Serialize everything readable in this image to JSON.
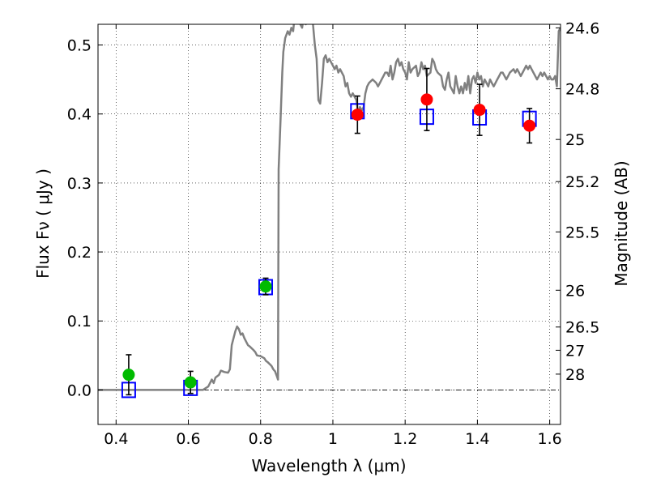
{
  "chart_data": {
    "type": "scatter",
    "xlabel": "Wavelength  λ (μm)",
    "ylabel": "Flux  Fν ( μJy )",
    "ylabel_right": "Magnitude (AB)",
    "xlim": [
      0.35,
      1.63
    ],
    "ylim": [
      -0.05,
      0.53
    ],
    "grid": true,
    "x_ticks": [
      0.4,
      0.6,
      0.8,
      1.0,
      1.2,
      1.4,
      1.6
    ],
    "x_tick_labels": [
      "0.4",
      "0.6",
      "0.8",
      "1",
      "1.2",
      "1.4",
      "1.6"
    ],
    "y_ticks": [
      0.0,
      0.1,
      0.2,
      0.3,
      0.4,
      0.5
    ],
    "y_tick_labels": [
      "0.0",
      "0.1",
      "0.2",
      "0.3",
      "0.4",
      "0.5"
    ],
    "mag_ticks": [
      {
        "value": 24.6,
        "label": "24.6"
      },
      {
        "value": 24.8,
        "label": "24.8"
      },
      {
        "value": 25.0,
        "label": "25"
      },
      {
        "value": 25.2,
        "label": "25.2"
      },
      {
        "value": 25.5,
        "label": "25.5"
      },
      {
        "value": 26.0,
        "label": "26"
      },
      {
        "value": 26.5,
        "label": "26.5"
      },
      {
        "value": 27.0,
        "label": "27"
      },
      {
        "value": 28.0,
        "label": "28"
      }
    ],
    "series": [
      {
        "name": "model spectrum",
        "kind": "line",
        "color": "#808080",
        "points": [
          [
            0.35,
            0.0
          ],
          [
            0.64,
            0.0
          ],
          [
            0.655,
            0.005
          ],
          [
            0.665,
            0.015
          ],
          [
            0.67,
            0.01
          ],
          [
            0.675,
            0.018
          ],
          [
            0.685,
            0.022
          ],
          [
            0.69,
            0.028
          ],
          [
            0.7,
            0.026
          ],
          [
            0.71,
            0.025
          ],
          [
            0.715,
            0.03
          ],
          [
            0.72,
            0.065
          ],
          [
            0.73,
            0.085
          ],
          [
            0.735,
            0.092
          ],
          [
            0.74,
            0.088
          ],
          [
            0.745,
            0.08
          ],
          [
            0.75,
            0.082
          ],
          [
            0.755,
            0.075
          ],
          [
            0.76,
            0.07
          ],
          [
            0.765,
            0.065
          ],
          [
            0.77,
            0.063
          ],
          [
            0.78,
            0.058
          ],
          [
            0.785,
            0.055
          ],
          [
            0.79,
            0.05
          ],
          [
            0.8,
            0.049
          ],
          [
            0.81,
            0.046
          ],
          [
            0.815,
            0.042
          ],
          [
            0.82,
            0.04
          ],
          [
            0.83,
            0.035
          ],
          [
            0.835,
            0.03
          ],
          [
            0.84,
            0.027
          ],
          [
            0.845,
            0.02
          ],
          [
            0.848,
            0.015
          ],
          [
            0.85,
            0.32
          ],
          [
            0.855,
            0.39
          ],
          [
            0.86,
            0.46
          ],
          [
            0.863,
            0.49
          ],
          [
            0.868,
            0.51
          ],
          [
            0.875,
            0.52
          ],
          [
            0.88,
            0.515
          ],
          [
            0.885,
            0.525
          ],
          [
            0.89,
            0.52
          ],
          [
            0.895,
            0.545
          ],
          [
            0.9,
            0.55
          ],
          [
            0.905,
            0.545
          ],
          [
            0.91,
            0.53
          ],
          [
            0.915,
            0.525
          ],
          [
            0.92,
            0.545
          ],
          [
            0.925,
            0.53
          ],
          [
            0.93,
            0.54
          ],
          [
            0.94,
            0.535
          ],
          [
            0.945,
            0.53
          ],
          [
            0.95,
            0.5
          ],
          [
            0.955,
            0.48
          ],
          [
            0.96,
            0.42
          ],
          [
            0.965,
            0.415
          ],
          [
            0.97,
            0.445
          ],
          [
            0.975,
            0.48
          ],
          [
            0.98,
            0.485
          ],
          [
            0.985,
            0.475
          ],
          [
            0.99,
            0.48
          ],
          [
            1.0,
            0.47
          ],
          [
            1.005,
            0.465
          ],
          [
            1.01,
            0.47
          ],
          [
            1.015,
            0.46
          ],
          [
            1.02,
            0.465
          ],
          [
            1.03,
            0.455
          ],
          [
            1.035,
            0.44
          ],
          [
            1.04,
            0.445
          ],
          [
            1.045,
            0.43
          ],
          [
            1.05,
            0.425
          ],
          [
            1.055,
            0.43
          ],
          [
            1.065,
            0.42
          ],
          [
            1.07,
            0.4
          ],
          [
            1.075,
            0.41
          ],
          [
            1.08,
            0.405
          ],
          [
            1.085,
            0.41
          ],
          [
            1.09,
            0.43
          ],
          [
            1.095,
            0.44
          ],
          [
            1.1,
            0.445
          ],
          [
            1.11,
            0.45
          ],
          [
            1.12,
            0.445
          ],
          [
            1.125,
            0.44
          ],
          [
            1.13,
            0.445
          ],
          [
            1.135,
            0.45
          ],
          [
            1.14,
            0.455
          ],
          [
            1.145,
            0.46
          ],
          [
            1.15,
            0.46
          ],
          [
            1.155,
            0.455
          ],
          [
            1.16,
            0.47
          ],
          [
            1.165,
            0.45
          ],
          [
            1.17,
            0.46
          ],
          [
            1.175,
            0.475
          ],
          [
            1.18,
            0.48
          ],
          [
            1.185,
            0.47
          ],
          [
            1.19,
            0.475
          ],
          [
            1.195,
            0.465
          ],
          [
            1.2,
            0.46
          ],
          [
            1.205,
            0.45
          ],
          [
            1.21,
            0.475
          ],
          [
            1.215,
            0.46
          ],
          [
            1.22,
            0.465
          ],
          [
            1.23,
            0.47
          ],
          [
            1.235,
            0.455
          ],
          [
            1.24,
            0.46
          ],
          [
            1.245,
            0.475
          ],
          [
            1.25,
            0.465
          ],
          [
            1.255,
            0.47
          ],
          [
            1.26,
            0.455
          ],
          [
            1.27,
            0.46
          ],
          [
            1.275,
            0.48
          ],
          [
            1.28,
            0.475
          ],
          [
            1.285,
            0.465
          ],
          [
            1.29,
            0.46
          ],
          [
            1.3,
            0.455
          ],
          [
            1.305,
            0.44
          ],
          [
            1.31,
            0.435
          ],
          [
            1.315,
            0.45
          ],
          [
            1.32,
            0.46
          ],
          [
            1.325,
            0.44
          ],
          [
            1.33,
            0.435
          ],
          [
            1.335,
            0.43
          ],
          [
            1.34,
            0.455
          ],
          [
            1.345,
            0.44
          ],
          [
            1.35,
            0.43
          ],
          [
            1.355,
            0.44
          ],
          [
            1.36,
            0.43
          ],
          [
            1.365,
            0.445
          ],
          [
            1.37,
            0.435
          ],
          [
            1.375,
            0.455
          ],
          [
            1.38,
            0.43
          ],
          [
            1.385,
            0.45
          ],
          [
            1.39,
            0.455
          ],
          [
            1.395,
            0.445
          ],
          [
            1.4,
            0.46
          ],
          [
            1.405,
            0.45
          ],
          [
            1.41,
            0.455
          ],
          [
            1.415,
            0.44
          ],
          [
            1.42,
            0.45
          ],
          [
            1.425,
            0.445
          ],
          [
            1.43,
            0.44
          ],
          [
            1.435,
            0.45
          ],
          [
            1.44,
            0.445
          ],
          [
            1.445,
            0.44
          ],
          [
            1.45,
            0.445
          ],
          [
            1.455,
            0.45
          ],
          [
            1.46,
            0.455
          ],
          [
            1.465,
            0.46
          ],
          [
            1.47,
            0.46
          ],
          [
            1.475,
            0.455
          ],
          [
            1.48,
            0.45
          ],
          [
            1.485,
            0.455
          ],
          [
            1.49,
            0.46
          ],
          [
            1.5,
            0.465
          ],
          [
            1.505,
            0.46
          ],
          [
            1.51,
            0.465
          ],
          [
            1.515,
            0.46
          ],
          [
            1.52,
            0.455
          ],
          [
            1.525,
            0.46
          ],
          [
            1.53,
            0.465
          ],
          [
            1.535,
            0.47
          ],
          [
            1.54,
            0.465
          ],
          [
            1.545,
            0.47
          ],
          [
            1.55,
            0.465
          ],
          [
            1.555,
            0.46
          ],
          [
            1.56,
            0.455
          ],
          [
            1.565,
            0.45
          ],
          [
            1.57,
            0.455
          ],
          [
            1.575,
            0.46
          ],
          [
            1.58,
            0.455
          ],
          [
            1.585,
            0.46
          ],
          [
            1.59,
            0.455
          ],
          [
            1.595,
            0.45
          ],
          [
            1.6,
            0.455
          ],
          [
            1.605,
            0.45
          ],
          [
            1.61,
            0.45
          ],
          [
            1.615,
            0.455
          ],
          [
            1.62,
            0.44
          ],
          [
            1.625,
            0.52
          ],
          [
            1.63,
            0.525
          ]
        ]
      },
      {
        "name": "model photometry",
        "kind": "open-square",
        "color": "#0000ff",
        "x": [
          0.435,
          0.606,
          0.814,
          1.068,
          1.26,
          1.406,
          1.544
        ],
        "y": [
          0.0,
          0.003,
          0.149,
          0.404,
          0.396,
          0.395,
          0.393
        ]
      },
      {
        "name": "observed (green)",
        "kind": "filled-circle",
        "color": "#00bb00",
        "x": [
          0.435,
          0.606,
          0.814
        ],
        "y": [
          0.022,
          0.011,
          0.15
        ],
        "err": [
          0.029,
          0.016,
          0.012
        ]
      },
      {
        "name": "observed (red)",
        "kind": "filled-circle",
        "color": "#ff0000",
        "x": [
          1.068,
          1.26,
          1.406,
          1.544
        ],
        "y": [
          0.399,
          0.421,
          0.406,
          0.383
        ],
        "err": [
          0.027,
          0.045,
          0.037,
          0.025
        ]
      }
    ]
  }
}
